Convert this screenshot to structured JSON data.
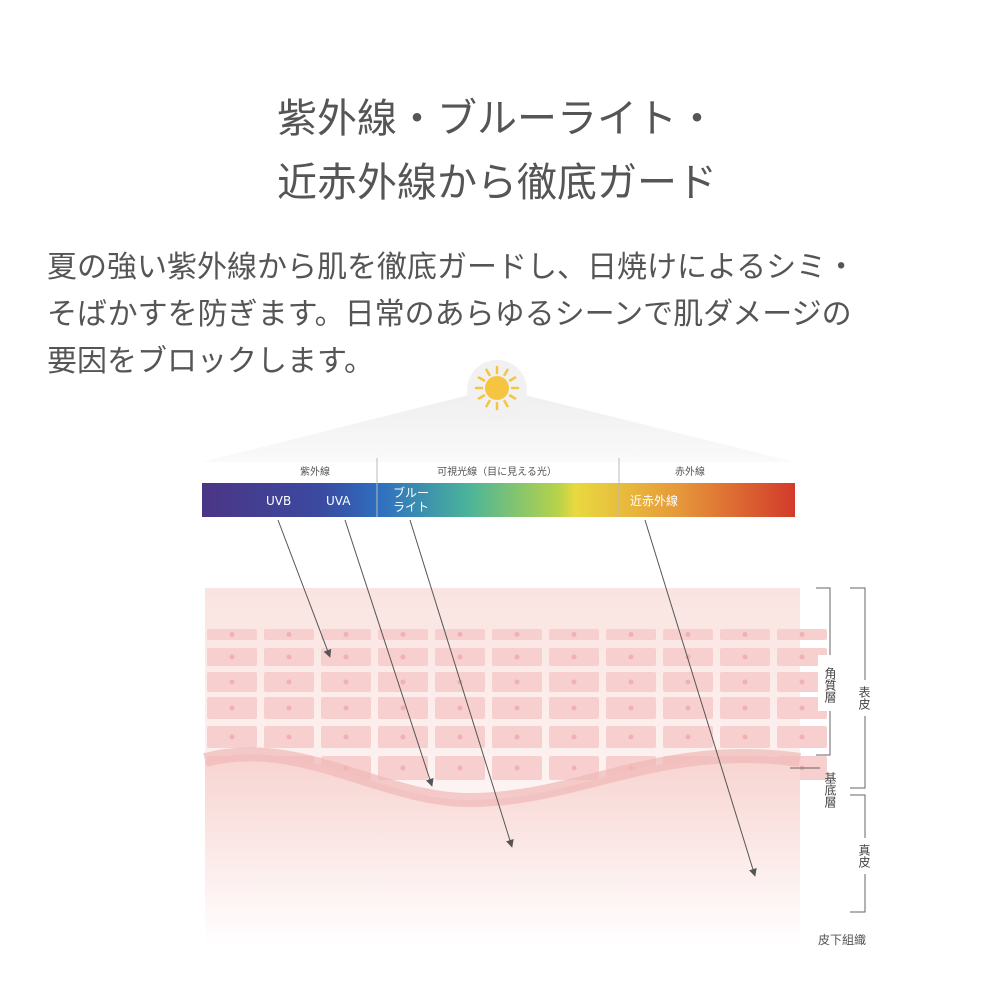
{
  "header": {
    "title_lines": [
      "紫外線・ブルーライト・",
      "近赤外線から徹底ガード"
    ]
  },
  "description": {
    "lines": [
      "夏の強い紫外線から肌を徹底ガードし、日焼けによるシミ・",
      "そばかすを防ぎます。日常のあらゆるシーンで肌ダメージの",
      "要因をブロックします。"
    ]
  },
  "spectrum": {
    "groups": [
      "紫外線",
      "可視光線（目に見える光）",
      "赤外線"
    ],
    "bands": {
      "uvb": "UVB",
      "uva": "UVA",
      "blue_light": [
        "ブルー",
        "ライト"
      ],
      "near_infrared": "近赤外線"
    }
  },
  "skin_layers": {
    "stratum_corneum": "角質層",
    "epidermis": "表皮",
    "basal_layer": "基底層",
    "dermis": "真皮",
    "subcutaneous": "皮下組織"
  }
}
